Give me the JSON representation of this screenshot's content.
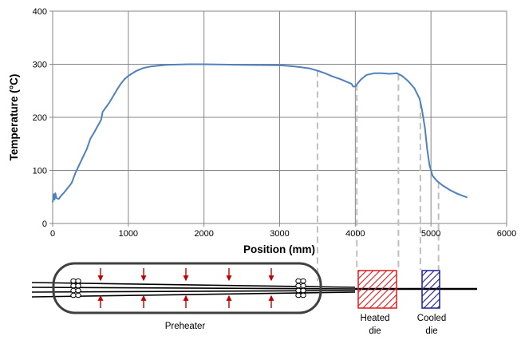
{
  "chart_data": {
    "type": "line",
    "title": "",
    "xlabel": "Position (mm)",
    "ylabel": "Temperature (°C)",
    "xlim": [
      0,
      6000
    ],
    "ylim": [
      0,
      400
    ],
    "x_ticks": [
      0,
      1000,
      2000,
      3000,
      4000,
      5000,
      6000
    ],
    "y_ticks": [
      0,
      100,
      200,
      300,
      400
    ],
    "grid": true,
    "legend": "none",
    "series": [
      {
        "color": "#4f81bd",
        "points": [
          [
            0,
            40
          ],
          [
            15,
            55
          ],
          [
            25,
            45
          ],
          [
            35,
            57
          ],
          [
            50,
            48
          ],
          [
            80,
            46
          ],
          [
            110,
            52
          ],
          [
            150,
            58
          ],
          [
            200,
            67
          ],
          [
            250,
            76
          ],
          [
            300,
            95
          ],
          [
            350,
            110
          ],
          [
            400,
            125
          ],
          [
            450,
            140
          ],
          [
            500,
            160
          ],
          [
            550,
            172
          ],
          [
            600,
            185
          ],
          [
            640,
            195
          ],
          [
            660,
            210
          ],
          [
            700,
            218
          ],
          [
            750,
            228
          ],
          [
            800,
            240
          ],
          [
            850,
            252
          ],
          [
            900,
            263
          ],
          [
            950,
            272
          ],
          [
            1000,
            278
          ],
          [
            1100,
            287
          ],
          [
            1200,
            293
          ],
          [
            1300,
            296
          ],
          [
            1500,
            299
          ],
          [
            1800,
            300
          ],
          [
            2000,
            300
          ],
          [
            2500,
            299
          ],
          [
            3000,
            298
          ],
          [
            3200,
            296
          ],
          [
            3400,
            292
          ],
          [
            3500,
            288
          ],
          [
            3600,
            283
          ],
          [
            3700,
            277
          ],
          [
            3800,
            272
          ],
          [
            3900,
            266
          ],
          [
            3950,
            263
          ],
          [
            3970,
            258
          ],
          [
            4000,
            258
          ],
          [
            4030,
            264
          ],
          [
            4080,
            272
          ],
          [
            4150,
            280
          ],
          [
            4250,
            283
          ],
          [
            4350,
            283
          ],
          [
            4450,
            282
          ],
          [
            4550,
            283
          ],
          [
            4620,
            278
          ],
          [
            4700,
            268
          ],
          [
            4780,
            255
          ],
          [
            4850,
            235
          ],
          [
            4880,
            215
          ],
          [
            4920,
            180
          ],
          [
            4950,
            140
          ],
          [
            4980,
            110
          ],
          [
            5020,
            90
          ],
          [
            5080,
            80
          ],
          [
            5150,
            72
          ],
          [
            5250,
            63
          ],
          [
            5350,
            56
          ],
          [
            5480,
            49
          ]
        ]
      }
    ],
    "reference_lines": [
      {
        "x": 3500,
        "style": "dashed",
        "color": "#bfbfbf"
      },
      {
        "x": 4020,
        "style": "dashed",
        "color": "#bfbfbf"
      },
      {
        "x": 4570,
        "style": "dashed",
        "color": "#bfbfbf"
      },
      {
        "x": 4860,
        "style": "dashed",
        "color": "#bfbfbf"
      },
      {
        "x": 5100,
        "style": "dashed",
        "color": "#bfbfbf"
      }
    ]
  },
  "diagram": {
    "preheater_label": "Preheater",
    "heated_die_label": [
      "Heated",
      "die"
    ],
    "cooled_die_label": [
      "Cooled",
      "die"
    ],
    "heated_die_color": "#e31a1c",
    "cooled_die_color": "#1f1f8f",
    "arrow_color": "#c00000",
    "preheater_outline_color": "#404040"
  }
}
